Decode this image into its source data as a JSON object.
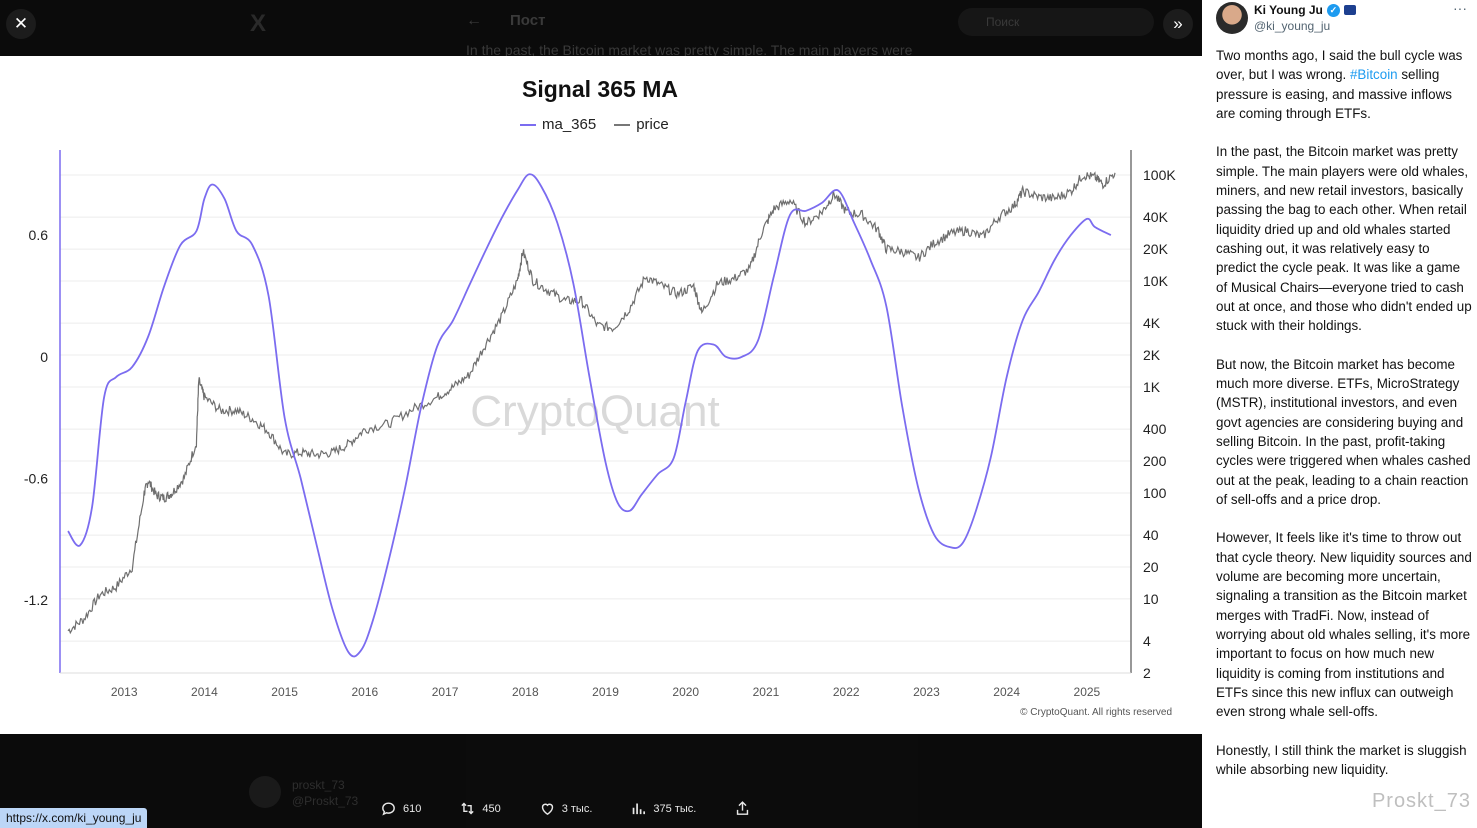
{
  "background_page": {
    "back_glyph": "←",
    "title": "Пост",
    "search_placeholder": "Поиск",
    "logo": "X",
    "text_snippet": "In the past, the Bitcoin market was pretty simple. The main players were",
    "commenter_name": "proskt_73",
    "commenter_handle": "@Proskt_73"
  },
  "viewer": {
    "close_icon": "close-icon",
    "expand_icon": "double-chevron-right-icon",
    "close_glyph": "✕",
    "expand_glyph": "»"
  },
  "chart_data": {
    "type": "line",
    "title": "Signal 365 MA",
    "watermark": "CryptoQuant",
    "copyright": "© CryptoQuant. All rights reserved",
    "legend": [
      {
        "name": "ma_365",
        "color": "#7b6cf0"
      },
      {
        "name": "price",
        "color": "#777777"
      }
    ],
    "x_ticks": [
      "2013",
      "2014",
      "2015",
      "2016",
      "2017",
      "2018",
      "2019",
      "2020",
      "2021",
      "2022",
      "2023",
      "2024",
      "2025"
    ],
    "left_axis": {
      "ticks": [
        "0.6",
        "0",
        "-0.6",
        "-1.2"
      ],
      "range": [
        -1.56,
        1.02
      ]
    },
    "right_axis": {
      "scale": "log",
      "ticks": [
        "100K",
        "40K",
        "20K",
        "10K",
        "4K",
        "2K",
        "1K",
        "400",
        "200",
        "100",
        "40",
        "20",
        "10",
        "4",
        "2"
      ]
    },
    "series": [
      {
        "name": "ma_365",
        "axis": "left",
        "points": [
          [
            2012.3,
            -0.86
          ],
          [
            2012.45,
            -0.93
          ],
          [
            2012.6,
            -0.74
          ],
          [
            2012.75,
            -0.2
          ],
          [
            2012.9,
            -0.1
          ],
          [
            2013.1,
            -0.05
          ],
          [
            2013.3,
            0.1
          ],
          [
            2013.5,
            0.35
          ],
          [
            2013.7,
            0.55
          ],
          [
            2013.9,
            0.62
          ],
          [
            2014.0,
            0.78
          ],
          [
            2014.1,
            0.85
          ],
          [
            2014.25,
            0.78
          ],
          [
            2014.4,
            0.62
          ],
          [
            2014.6,
            0.55
          ],
          [
            2014.8,
            0.3
          ],
          [
            2015.0,
            -0.3
          ],
          [
            2015.2,
            -0.6
          ],
          [
            2015.4,
            -0.93
          ],
          [
            2015.6,
            -1.25
          ],
          [
            2015.8,
            -1.46
          ],
          [
            2015.95,
            -1.45
          ],
          [
            2016.1,
            -1.3
          ],
          [
            2016.3,
            -1.0
          ],
          [
            2016.5,
            -0.65
          ],
          [
            2016.7,
            -0.25
          ],
          [
            2016.9,
            0.05
          ],
          [
            2017.1,
            0.18
          ],
          [
            2017.3,
            0.35
          ],
          [
            2017.5,
            0.52
          ],
          [
            2017.7,
            0.68
          ],
          [
            2017.9,
            0.82
          ],
          [
            2018.05,
            0.9
          ],
          [
            2018.2,
            0.84
          ],
          [
            2018.4,
            0.66
          ],
          [
            2018.6,
            0.36
          ],
          [
            2018.8,
            -0.1
          ],
          [
            2019.0,
            -0.52
          ],
          [
            2019.15,
            -0.72
          ],
          [
            2019.3,
            -0.76
          ],
          [
            2019.45,
            -0.68
          ],
          [
            2019.65,
            -0.58
          ],
          [
            2019.85,
            -0.5
          ],
          [
            2020.0,
            -0.22
          ],
          [
            2020.15,
            0.03
          ],
          [
            2020.35,
            0.06
          ],
          [
            2020.5,
            0.0
          ],
          [
            2020.7,
            0.0
          ],
          [
            2020.9,
            0.08
          ],
          [
            2021.1,
            0.4
          ],
          [
            2021.3,
            0.7
          ],
          [
            2021.5,
            0.72
          ],
          [
            2021.7,
            0.76
          ],
          [
            2021.9,
            0.82
          ],
          [
            2022.1,
            0.66
          ],
          [
            2022.3,
            0.48
          ],
          [
            2022.5,
            0.25
          ],
          [
            2022.7,
            -0.25
          ],
          [
            2022.9,
            -0.65
          ],
          [
            2023.1,
            -0.88
          ],
          [
            2023.3,
            -0.94
          ],
          [
            2023.45,
            -0.92
          ],
          [
            2023.6,
            -0.78
          ],
          [
            2023.8,
            -0.5
          ],
          [
            2024.0,
            -0.1
          ],
          [
            2024.2,
            0.18
          ],
          [
            2024.4,
            0.32
          ],
          [
            2024.6,
            0.48
          ],
          [
            2024.8,
            0.6
          ],
          [
            2025.0,
            0.68
          ],
          [
            2025.1,
            0.64
          ],
          [
            2025.3,
            0.6
          ]
        ]
      },
      {
        "name": "price",
        "axis": "right",
        "points": [
          [
            2012.3,
            5
          ],
          [
            2012.5,
            6.5
          ],
          [
            2012.7,
            11
          ],
          [
            2012.9,
            13
          ],
          [
            2013.1,
            20
          ],
          [
            2013.25,
            100
          ],
          [
            2013.3,
            130
          ],
          [
            2013.4,
            95
          ],
          [
            2013.5,
            90
          ],
          [
            2013.6,
            100
          ],
          [
            2013.75,
            140
          ],
          [
            2013.9,
            300
          ],
          [
            2013.93,
            1150
          ],
          [
            2014.0,
            800
          ],
          [
            2014.2,
            600
          ],
          [
            2014.4,
            600
          ],
          [
            2014.6,
            500
          ],
          [
            2014.8,
            380
          ],
          [
            2015.0,
            230
          ],
          [
            2015.2,
            240
          ],
          [
            2015.4,
            230
          ],
          [
            2015.6,
            240
          ],
          [
            2015.8,
            290
          ],
          [
            2016.0,
            400
          ],
          [
            2016.3,
            450
          ],
          [
            2016.6,
            620
          ],
          [
            2016.9,
            800
          ],
          [
            2017.1,
            1000
          ],
          [
            2017.3,
            1300
          ],
          [
            2017.5,
            2500
          ],
          [
            2017.7,
            4500
          ],
          [
            2017.9,
            10000
          ],
          [
            2017.97,
            19000
          ],
          [
            2018.1,
            10000
          ],
          [
            2018.3,
            8000
          ],
          [
            2018.5,
            6500
          ],
          [
            2018.7,
            6500
          ],
          [
            2018.9,
            3800
          ],
          [
            2019.1,
            3600
          ],
          [
            2019.3,
            5500
          ],
          [
            2019.5,
            11000
          ],
          [
            2019.7,
            9000
          ],
          [
            2019.9,
            7500
          ],
          [
            2020.1,
            9000
          ],
          [
            2020.2,
            5000
          ],
          [
            2020.4,
            9500
          ],
          [
            2020.6,
            10500
          ],
          [
            2020.8,
            13000
          ],
          [
            2020.95,
            29000
          ],
          [
            2021.1,
            48000
          ],
          [
            2021.3,
            58000
          ],
          [
            2021.5,
            35000
          ],
          [
            2021.7,
            45000
          ],
          [
            2021.85,
            66000
          ],
          [
            2022.0,
            45000
          ],
          [
            2022.2,
            42000
          ],
          [
            2022.4,
            30000
          ],
          [
            2022.5,
            20000
          ],
          [
            2022.7,
            19000
          ],
          [
            2022.9,
            16500
          ],
          [
            2023.1,
            23000
          ],
          [
            2023.3,
            28000
          ],
          [
            2023.5,
            30000
          ],
          [
            2023.7,
            26000
          ],
          [
            2023.9,
            40000
          ],
          [
            2024.1,
            52000
          ],
          [
            2024.2,
            70000
          ],
          [
            2024.4,
            62000
          ],
          [
            2024.6,
            60000
          ],
          [
            2024.8,
            70000
          ],
          [
            2024.95,
            100000
          ],
          [
            2025.1,
            95000
          ],
          [
            2025.2,
            82000
          ],
          [
            2025.35,
            105000
          ]
        ]
      }
    ]
  },
  "actions": {
    "reply_count": "610",
    "repost_count": "450",
    "like_count": "3 тыс.",
    "view_count": "375 тыс."
  },
  "status_url": "https://x.com/ki_young_ju",
  "tweet": {
    "author_name": "Ki Young Ju",
    "author_handle": "@ki_young_ju",
    "more_glyph": "···",
    "verified_glyph": "✓",
    "p1_before": "Two months ago, I said the bull cycle was over, but I was wrong. ",
    "p1_hashtag": "#Bitcoin",
    "p1_after": " selling pressure is easing, and massive inflows are coming through ETFs.",
    "p2": "In the past, the Bitcoin market was pretty simple. The main players were old whales, miners, and new retail investors, basically passing the bag to each other. When retail liquidity dried up and old whales started cashing out, it was relatively easy to predict the cycle peak. It was like a game of Musical Chairs—everyone tried to cash out at once, and those who didn't ended up stuck with their holdings.",
    "p3": "But now, the Bitcoin market has become much more diverse. ETFs, MicroStrategy (MSTR), institutional investors, and even govt agencies are considering buying and selling Bitcoin. In the past, profit-taking cycles were triggered when whales cashed out at the peak, leading to a chain reaction of sell-offs and a price drop.",
    "p4": "However, It feels like it's time to throw out that cycle theory. New liquidity sources and volume are becoming more uncertain, signaling a transition as the Bitcoin market merges with TradFi. Now, instead of worrying about old whales selling, it's more important to focus on how much new liquidity is coming from institutions and ETFs since this new influx can outweigh even strong whale sell-offs.",
    "p5": "Honestly, I still think the market is sluggish while absorbing new liquidity."
  },
  "page_watermark": "Proskt_73"
}
